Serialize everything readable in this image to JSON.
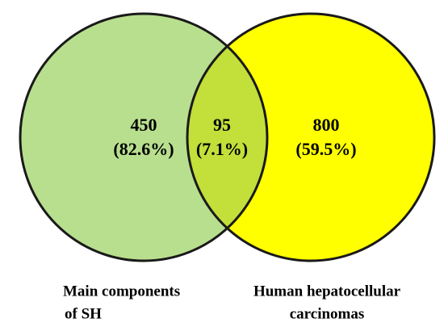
{
  "sets": [
    {
      "label": [
        "Main components",
        "of SH"
      ]
    },
    {
      "label": [
        "Human hepatocellular",
        "carcinomas"
      ]
    }
  ],
  "regions": [
    {
      "count": 450,
      "percent": "(82.6%)"
    },
    {
      "count": 95,
      "percent": "(7.1%)"
    },
    {
      "count": 800,
      "percent": "(59.5%)"
    }
  ]
}
